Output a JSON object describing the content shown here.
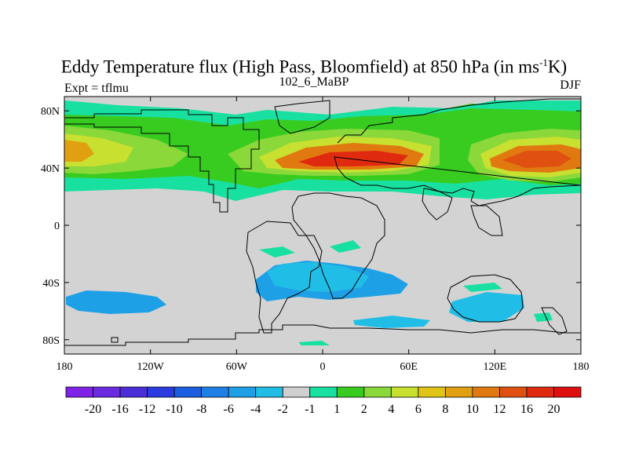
{
  "header": {
    "title_main": "Eddy Temperature flux (High Pass, Bloomfield) at 850 hPa (in ms",
    "title_sup": "-1",
    "title_end": "K)",
    "subtitle": "102_6_MaBP",
    "left_label": "Expt = tflmu",
    "right_label": "DJF"
  },
  "map": {
    "background_color": "#d3d3d3",
    "y_ticks": [
      {
        "label": "80N",
        "lat": 80
      },
      {
        "label": "40N",
        "lat": 40
      },
      {
        "label": "0",
        "lat": 0
      },
      {
        "label": "40S",
        "lat": -40
      },
      {
        "label": "80S",
        "lat": -80
      }
    ],
    "x_ticks": [
      {
        "label": "180",
        "lon": -180
      },
      {
        "label": "120W",
        "lon": -120
      },
      {
        "label": "60W",
        "lon": -60
      },
      {
        "label": "0",
        "lon": 0
      },
      {
        "label": "60E",
        "lon": 60
      },
      {
        "label": "120E",
        "lon": 120
      },
      {
        "label": "180",
        "lon": 180
      }
    ],
    "lon_range": [
      -180,
      180
    ],
    "lat_range": [
      -90,
      90
    ]
  },
  "colorbar": {
    "colors": [
      "#7f22e8",
      "#6a2ae0",
      "#4b2ed8",
      "#2a3ce0",
      "#1c5ee0",
      "#1e80e6",
      "#1ea0e6",
      "#20bee6",
      "#cfcfcf",
      "#18e0a0",
      "#38cc20",
      "#8ad83a",
      "#c8e030",
      "#e0c418",
      "#e0a010",
      "#e07a10",
      "#e05010",
      "#e02a10",
      "#e00f0f"
    ],
    "labels": [
      "-20",
      "-16",
      "-12",
      "-10",
      "-8",
      "-6",
      "-4",
      "-2",
      "-1",
      "1",
      "2",
      "4",
      "6",
      "8",
      "10",
      "12",
      "16",
      "20"
    ]
  }
}
